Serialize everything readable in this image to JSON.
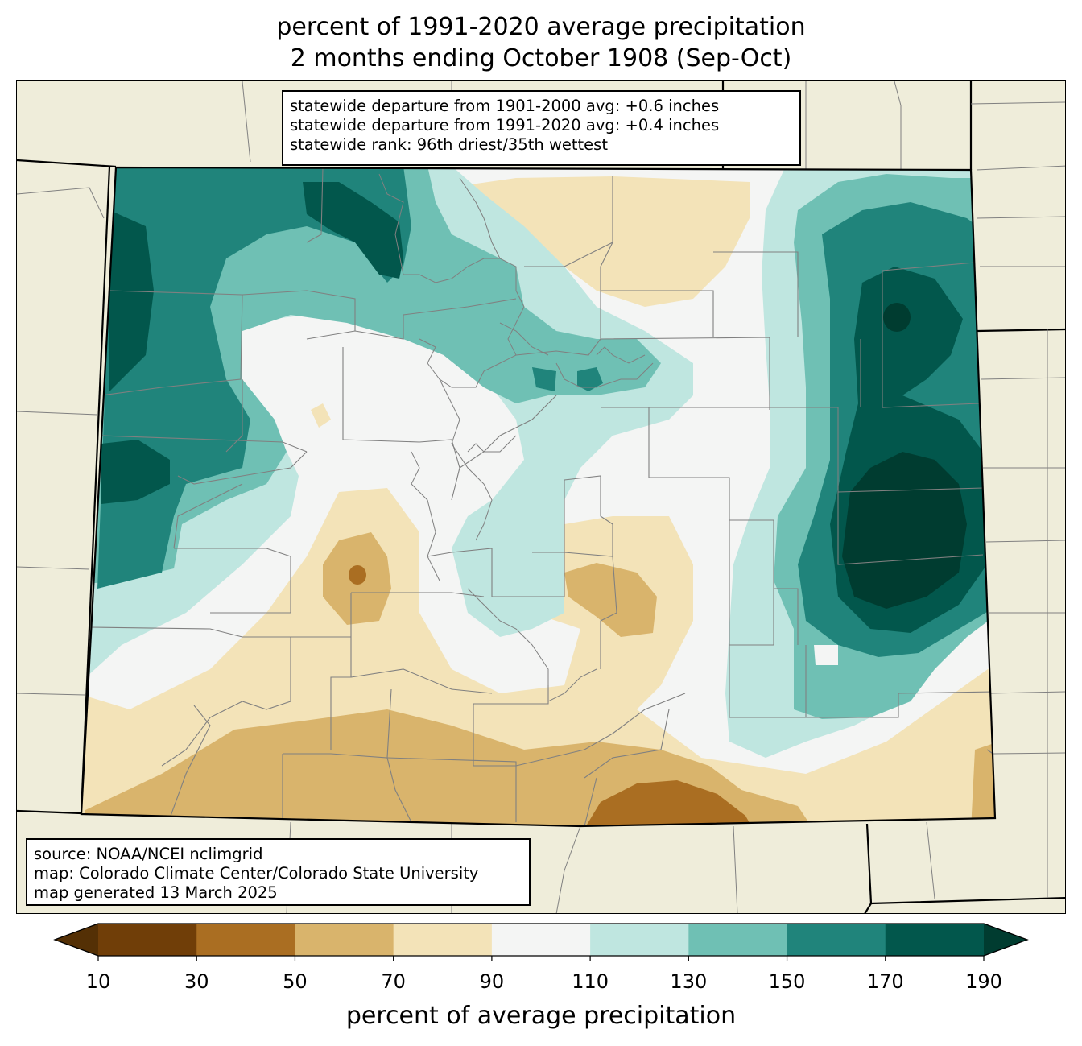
{
  "title": {
    "line1": "percent of 1991-2020 average precipitation",
    "line2": "2 months ending October 1908 (Sep-Oct)"
  },
  "stats": {
    "departure_1901_2000": "statewide departure from 1901-2000 avg: +0.6 inches",
    "departure_1991_2020": "statewide departure from 1991-2020 avg: +0.4 inches",
    "rank": "statewide rank: 96th driest/35th wettest"
  },
  "credits": {
    "source": "source: NOAA/NCEI nclimgrid",
    "map": "map: Colorado Climate Center/Colorado State University",
    "generated": "map generated 13 March 2025"
  },
  "legend": {
    "title": "percent of average precipitation",
    "ticks": [
      "10",
      "30",
      "50",
      "70",
      "90",
      "110",
      "130",
      "150",
      "170",
      "190"
    ],
    "colors": {
      "below_10": "#543005",
      "10_30": "#703e08",
      "30_50": "#aa6e22",
      "50_70": "#d9b46c",
      "70_90": "#f3e3b8",
      "90_110": "#f4f5f4",
      "110_130": "#bfe6e0",
      "130_150": "#6fc0b4",
      "150_170": "#20847b",
      "170_190": "#02574c",
      "above_190": "#003c30"
    }
  },
  "map_colors": {
    "background": "#efedda",
    "state_border": "#000000",
    "county_border": "#808080"
  }
}
